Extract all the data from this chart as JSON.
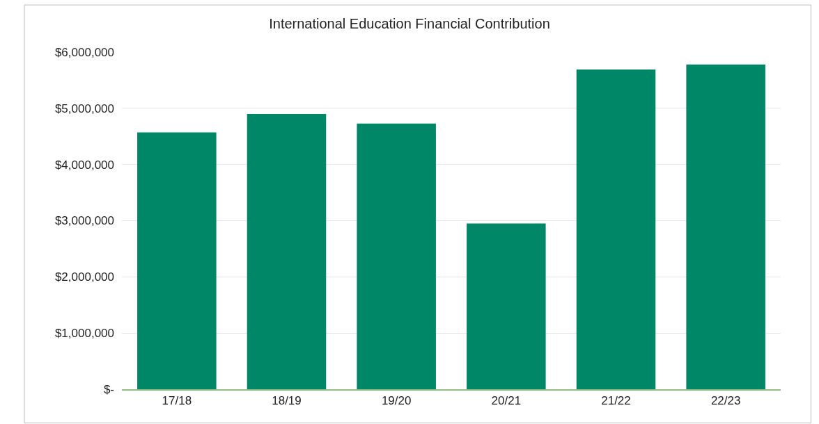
{
  "chart_data": {
    "type": "bar",
    "title": "International Education Financial Contribution",
    "categories": [
      "17/18",
      "18/19",
      "19/20",
      "20/21",
      "21/22",
      "22/23"
    ],
    "values": [
      4570000,
      4900000,
      4730000,
      2950000,
      5690000,
      5780000
    ],
    "color": "#008768",
    "ylim": [
      0,
      6000000
    ],
    "yticks": [
      {
        "value": 0,
        "label": "$-"
      },
      {
        "value": 1000000,
        "label": "$1,000,000"
      },
      {
        "value": 2000000,
        "label": "$2,000,000"
      },
      {
        "value": 3000000,
        "label": "$3,000,000"
      },
      {
        "value": 4000000,
        "label": "$4,000,000"
      },
      {
        "value": 5000000,
        "label": "$5,000,000"
      },
      {
        "value": 6000000,
        "label": "$6,000,000"
      }
    ],
    "grid": "y"
  }
}
